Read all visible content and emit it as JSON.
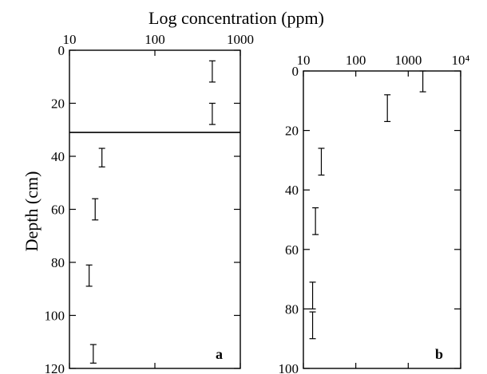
{
  "figure": {
    "title": "Log concentration (ppm)",
    "ylabel": "Depth (cm)"
  },
  "chart_data": [
    {
      "type": "scatter",
      "label": "a",
      "x_scale": "log",
      "xlim": [
        10,
        1000
      ],
      "x_ticks": [
        "10",
        "100",
        "1000"
      ],
      "x_tick_values": [
        10,
        100,
        1000
      ],
      "ylim": [
        0,
        120
      ],
      "y_inverted": true,
      "y_ticks": [
        "0",
        "20",
        "40",
        "60",
        "80",
        "100",
        "120"
      ],
      "y_tick_values": [
        0,
        20,
        40,
        60,
        80,
        100,
        120
      ],
      "horizontal_line_depth": 31,
      "points": [
        {
          "x": 470,
          "y_low": 4,
          "y_high": 12
        },
        {
          "x": 470,
          "y_low": 20,
          "y_high": 28
        },
        {
          "x": 24,
          "y_low": 37,
          "y_high": 44
        },
        {
          "x": 20,
          "y_low": 56,
          "y_high": 64
        },
        {
          "x": 17,
          "y_low": 81,
          "y_high": 89
        },
        {
          "x": 19,
          "y_low": 111,
          "y_high": 118
        }
      ]
    },
    {
      "type": "scatter",
      "label": "b",
      "x_scale": "log",
      "xlim": [
        10,
        10000
      ],
      "x_ticks": [
        "10",
        "100",
        "1000",
        "10⁴"
      ],
      "x_tick_values": [
        10,
        100,
        1000,
        10000
      ],
      "ylim": [
        0,
        100
      ],
      "y_inverted": true,
      "y_ticks": [
        "0",
        "20",
        "40",
        "60",
        "80",
        "100"
      ],
      "y_tick_values": [
        0,
        20,
        40,
        60,
        80,
        100
      ],
      "points": [
        {
          "x": 1900,
          "y_low": 0,
          "y_high": 7
        },
        {
          "x": 400,
          "y_low": 8,
          "y_high": 17
        },
        {
          "x": 22,
          "y_low": 26,
          "y_high": 35
        },
        {
          "x": 17,
          "y_low": 46,
          "y_high": 55
        },
        {
          "x": 15,
          "y_low": 71,
          "y_high": 80
        },
        {
          "x": 15,
          "y_low": 81,
          "y_high": 90
        }
      ]
    }
  ]
}
